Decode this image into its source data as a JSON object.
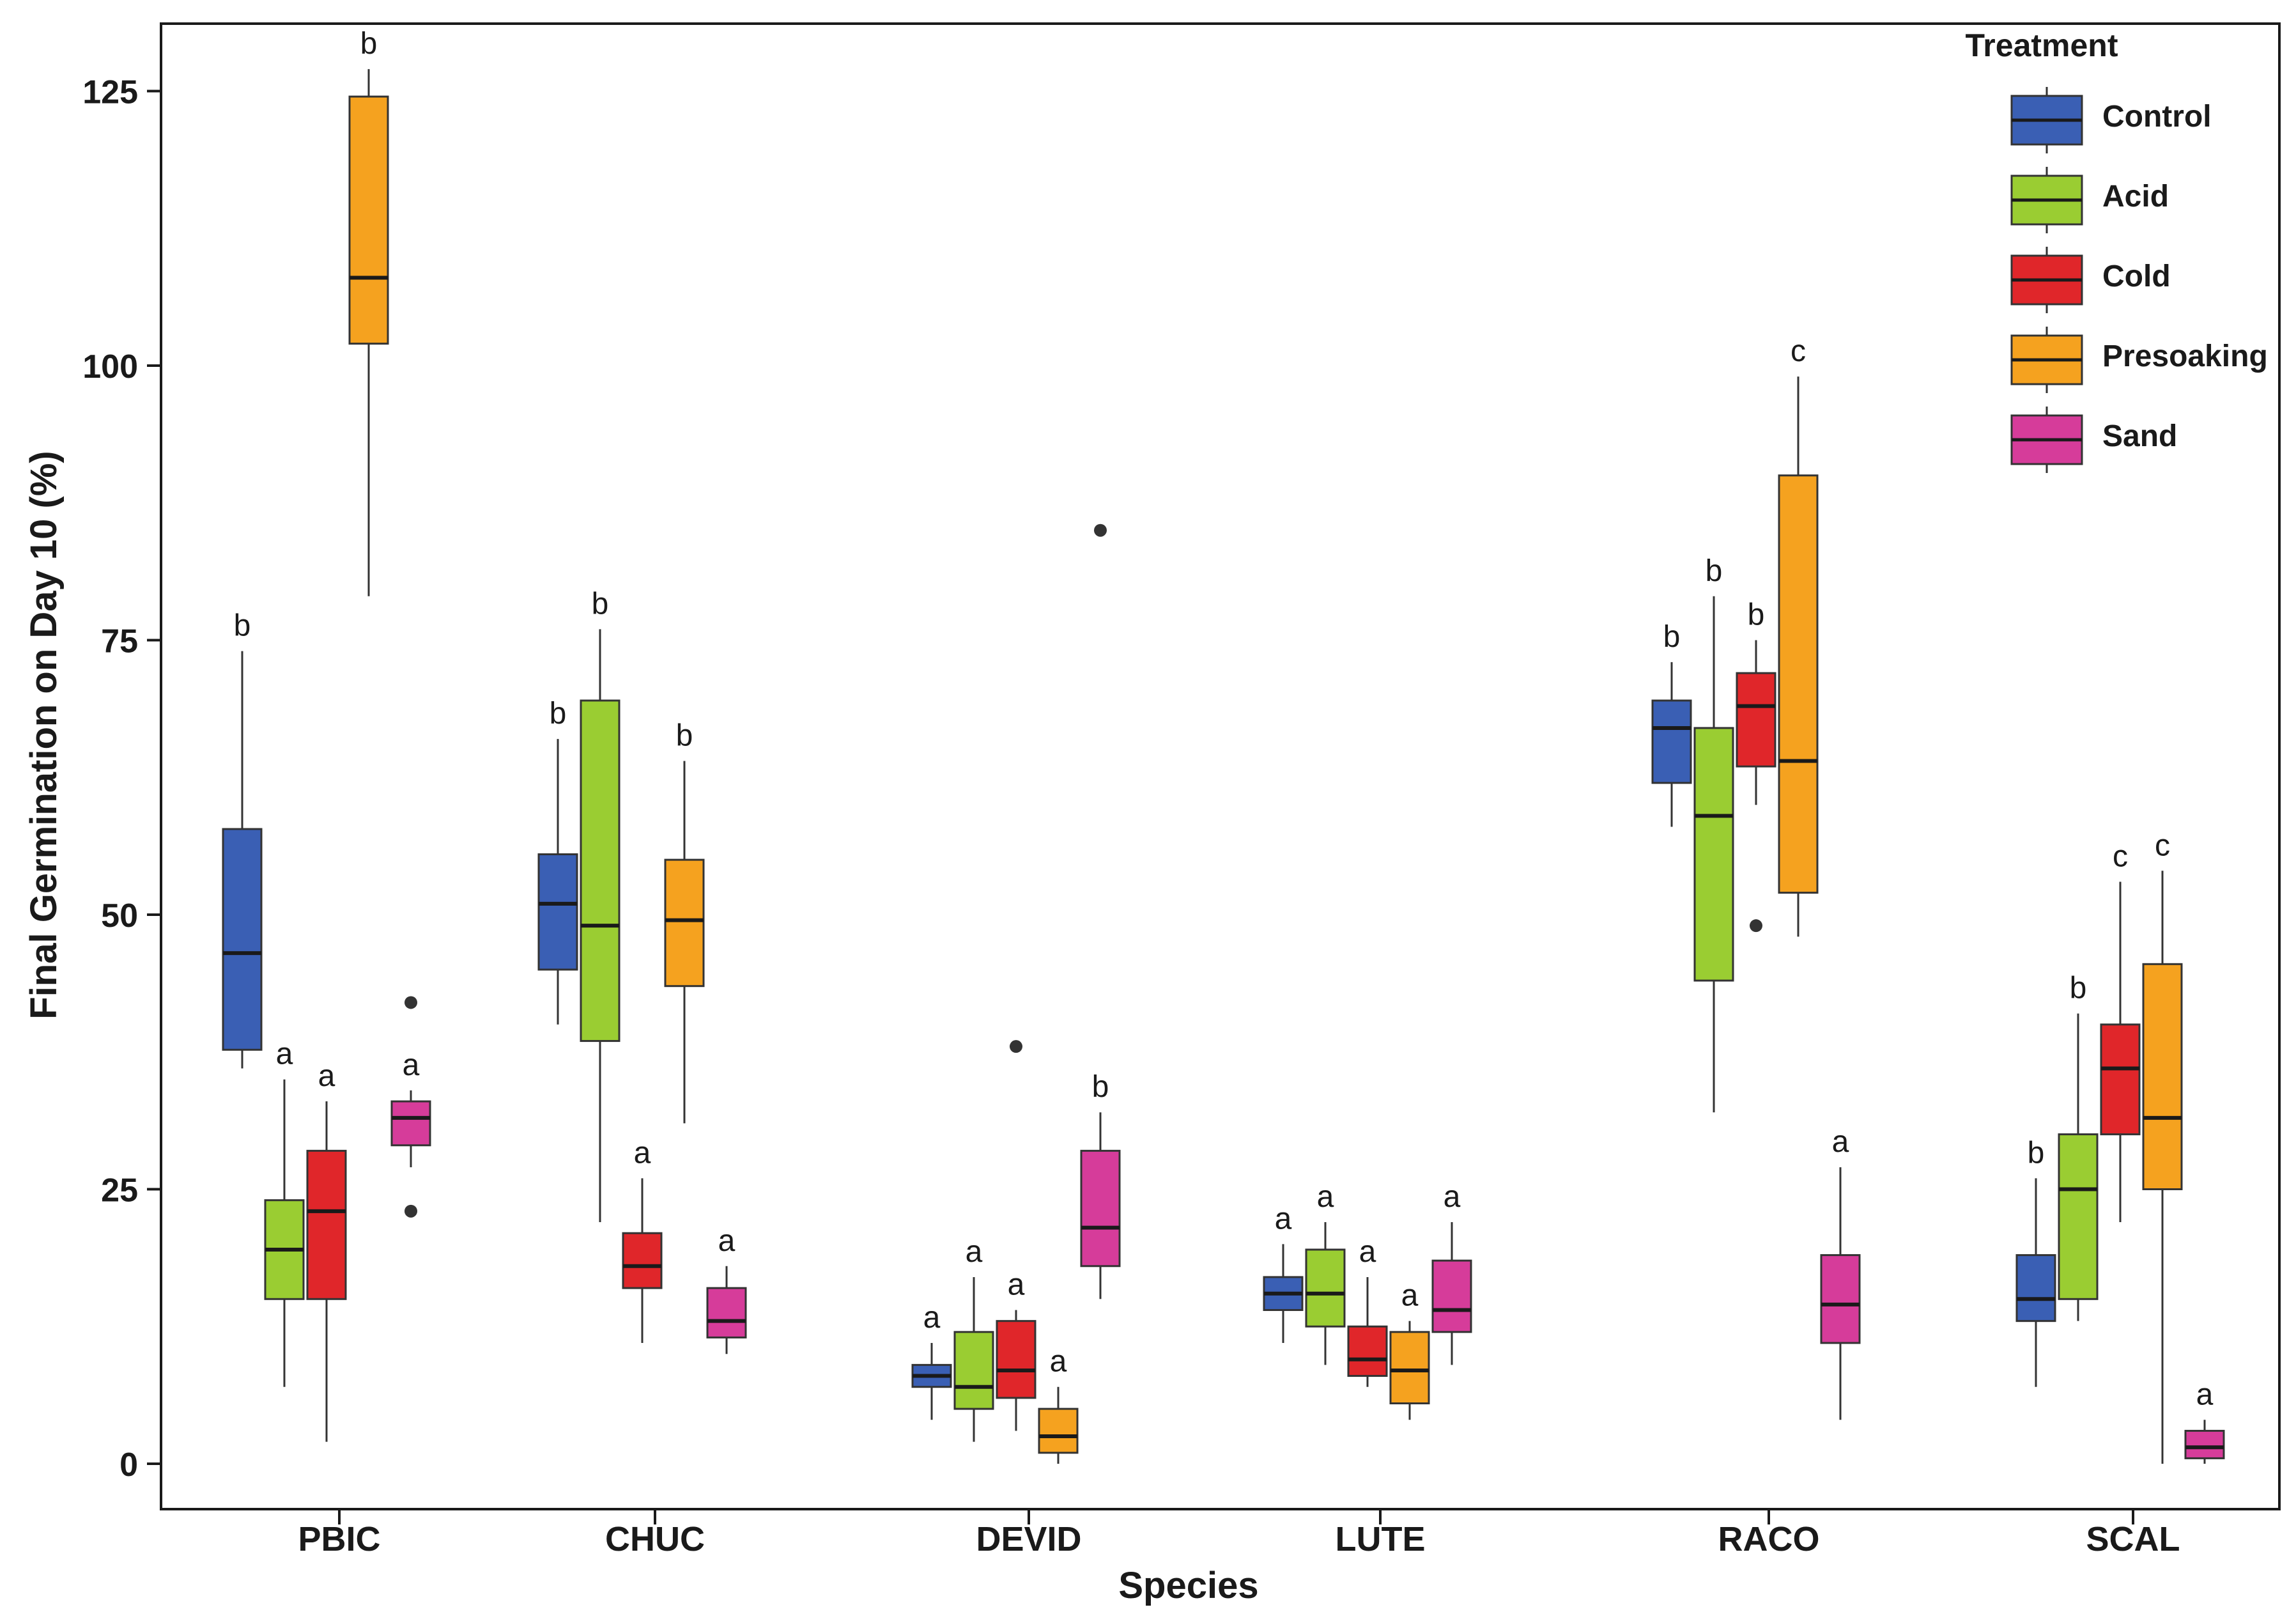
{
  "chart_data": {
    "type": "box",
    "title": "",
    "xlabel": "Species",
    "ylabel": "Final Germination on Day  10 (%)",
    "ylim": [
      -4,
      131
    ],
    "yticks": [
      0,
      25,
      50,
      75,
      100,
      125
    ],
    "categories": [
      "PBIC",
      "CHUC",
      "DEVID",
      "LUTE",
      "RACO",
      "SCAL"
    ],
    "legend": {
      "title": "Treatment",
      "position": "top-right",
      "entries": [
        "Control",
        "Acid",
        "Cold",
        "Presoaking",
        "Sand"
      ]
    },
    "series": [
      {
        "name": "Control",
        "color": "#3A5FB4",
        "boxes": [
          {
            "category": "PBIC",
            "min": 36,
            "q1": 37.7,
            "median": 46.5,
            "q3": 57.8,
            "max": 74,
            "outliers": [],
            "label": "b"
          },
          {
            "category": "CHUC",
            "min": 40,
            "q1": 45,
            "median": 51,
            "q3": 55.5,
            "max": 66,
            "outliers": [],
            "label": "b"
          },
          {
            "category": "DEVID",
            "min": 4,
            "q1": 7,
            "median": 8,
            "q3": 9,
            "max": 11,
            "outliers": [],
            "label": "a"
          },
          {
            "category": "LUTE",
            "min": 11,
            "q1": 14,
            "median": 15.5,
            "q3": 17,
            "max": 20,
            "outliers": [],
            "label": "a"
          },
          {
            "category": "RACO",
            "min": 58,
            "q1": 62,
            "median": 67,
            "q3": 69.5,
            "max": 73,
            "outliers": [],
            "label": "b"
          },
          {
            "category": "SCAL",
            "min": 7,
            "q1": 13,
            "median": 15,
            "q3": 19,
            "max": 26,
            "outliers": [],
            "label": "b"
          }
        ]
      },
      {
        "name": "Acid",
        "color": "#9ACD32",
        "boxes": [
          {
            "category": "PBIC",
            "min": 7,
            "q1": 15,
            "median": 19.5,
            "q3": 24,
            "max": 35,
            "outliers": [],
            "label": "a"
          },
          {
            "category": "CHUC",
            "min": 22,
            "q1": 38.5,
            "median": 49,
            "q3": 69.5,
            "max": 76,
            "outliers": [],
            "label": "b"
          },
          {
            "category": "DEVID",
            "min": 2,
            "q1": 5,
            "median": 7,
            "q3": 12,
            "max": 17,
            "outliers": [],
            "label": "a"
          },
          {
            "category": "LUTE",
            "min": 9,
            "q1": 12.5,
            "median": 15.5,
            "q3": 19.5,
            "max": 22,
            "outliers": [],
            "label": "a"
          },
          {
            "category": "RACO",
            "min": 32,
            "q1": 44,
            "median": 59,
            "q3": 67,
            "max": 79,
            "outliers": [],
            "label": "b"
          },
          {
            "category": "SCAL",
            "min": 13,
            "q1": 15,
            "median": 25,
            "q3": 30,
            "max": 41,
            "outliers": [],
            "label": "b"
          }
        ]
      },
      {
        "name": "Cold",
        "color": "#E0262A",
        "boxes": [
          {
            "category": "PBIC",
            "min": 2,
            "q1": 15,
            "median": 23,
            "q3": 28.5,
            "max": 33,
            "outliers": [],
            "label": "a"
          },
          {
            "category": "CHUC",
            "min": 11,
            "q1": 16,
            "median": 18,
            "q3": 21,
            "max": 26,
            "outliers": [],
            "label": "a"
          },
          {
            "category": "DEVID",
            "min": 3,
            "q1": 6,
            "median": 8.5,
            "q3": 13,
            "max": 14,
            "outliers": [
              38
            ],
            "label": "a"
          },
          {
            "category": "LUTE",
            "min": 7,
            "q1": 8,
            "median": 9.5,
            "q3": 12.5,
            "max": 17,
            "outliers": [],
            "label": "a"
          },
          {
            "category": "RACO",
            "min": 60,
            "q1": 63.5,
            "median": 69,
            "q3": 72,
            "max": 75,
            "outliers": [
              49
            ],
            "label": "b"
          },
          {
            "category": "SCAL",
            "min": 22,
            "q1": 30,
            "median": 36,
            "q3": 40,
            "max": 53,
            "outliers": [],
            "label": "c"
          }
        ]
      },
      {
        "name": "Presoaking",
        "color": "#F5A21F",
        "boxes": [
          {
            "category": "PBIC",
            "min": 79,
            "q1": 102,
            "median": 108,
            "q3": 124.5,
            "max": 127,
            "outliers": [],
            "label": "b"
          },
          {
            "category": "CHUC",
            "min": 31,
            "q1": 43.5,
            "median": 49.5,
            "q3": 55,
            "max": 64,
            "outliers": [],
            "label": "b"
          },
          {
            "category": "DEVID",
            "min": 0,
            "q1": 1,
            "median": 2.5,
            "q3": 5,
            "max": 7,
            "outliers": [],
            "label": "a"
          },
          {
            "category": "LUTE",
            "min": 4,
            "q1": 5.5,
            "median": 8.5,
            "q3": 12,
            "max": 13,
            "outliers": [],
            "label": "a"
          },
          {
            "category": "RACO",
            "min": 48,
            "q1": 52,
            "median": 64,
            "q3": 90,
            "max": 99,
            "outliers": [],
            "label": "c"
          },
          {
            "category": "SCAL",
            "min": 0,
            "q1": 25,
            "median": 31.5,
            "q3": 45.5,
            "max": 54,
            "outliers": [],
            "label": "c"
          }
        ]
      },
      {
        "name": "Sand",
        "color": "#D63C9A",
        "boxes": [
          {
            "category": "PBIC",
            "min": 27,
            "q1": 29,
            "median": 31.5,
            "q3": 33,
            "max": 34,
            "outliers": [
              42,
              23
            ],
            "label": "a"
          },
          {
            "category": "CHUC",
            "min": 10,
            "q1": 11.5,
            "median": 13,
            "q3": 16,
            "max": 18,
            "outliers": [],
            "label": "a"
          },
          {
            "category": "DEVID",
            "min": 15,
            "q1": 18,
            "median": 21.5,
            "q3": 28.5,
            "max": 32,
            "outliers": [
              85
            ],
            "label": "b"
          },
          {
            "category": "LUTE",
            "min": 9,
            "q1": 12,
            "median": 14,
            "q3": 18.5,
            "max": 22,
            "outliers": [],
            "label": "a"
          },
          {
            "category": "RACO",
            "min": 4,
            "q1": 11,
            "median": 14.5,
            "q3": 19,
            "max": 27,
            "outliers": [],
            "label": "a"
          },
          {
            "category": "SCAL",
            "min": 0,
            "q1": 0.5,
            "median": 1.5,
            "q3": 3,
            "max": 4,
            "outliers": [],
            "label": "a"
          }
        ]
      }
    ]
  }
}
